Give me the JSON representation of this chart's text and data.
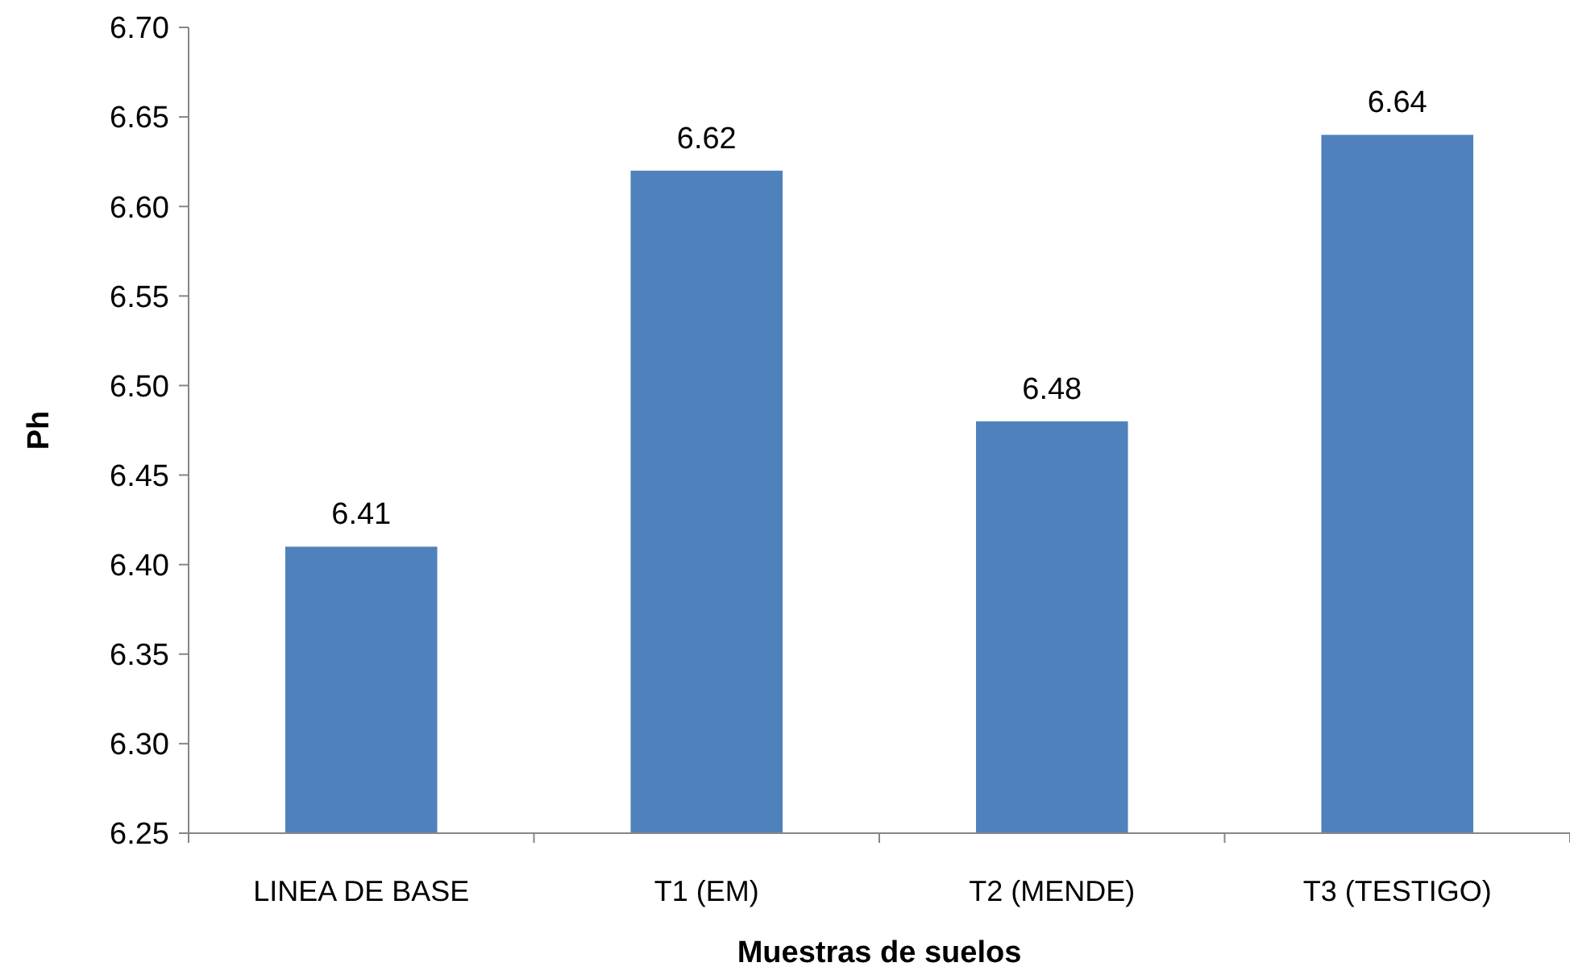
{
  "chart_data": {
    "type": "bar",
    "xlabel": "Muestras de suelos",
    "ylabel": "Ph",
    "categories": [
      "LINEA DE BASE",
      "T1 (EM)",
      "T2 (MENDE)",
      "T3 (TESTIGO)"
    ],
    "values": [
      6.41,
      6.62,
      6.48,
      6.64
    ],
    "color": "#4f81bd",
    "ylim": [
      6.25,
      6.7
    ],
    "yticks": [
      {
        "value": 6.25,
        "label": "6.25"
      },
      {
        "value": 6.3,
        "label": "6.30"
      },
      {
        "value": 6.35,
        "label": "6.35"
      },
      {
        "value": 6.4,
        "label": "6.40"
      },
      {
        "value": 6.45,
        "label": "6.45"
      },
      {
        "value": 6.5,
        "label": "6.50"
      },
      {
        "value": 6.55,
        "label": "6.55"
      },
      {
        "value": 6.6,
        "label": "6.60"
      },
      {
        "value": 6.65,
        "label": "6.65"
      },
      {
        "value": 6.7,
        "label": "6.70"
      }
    ],
    "data_labels": true,
    "grid": false
  }
}
